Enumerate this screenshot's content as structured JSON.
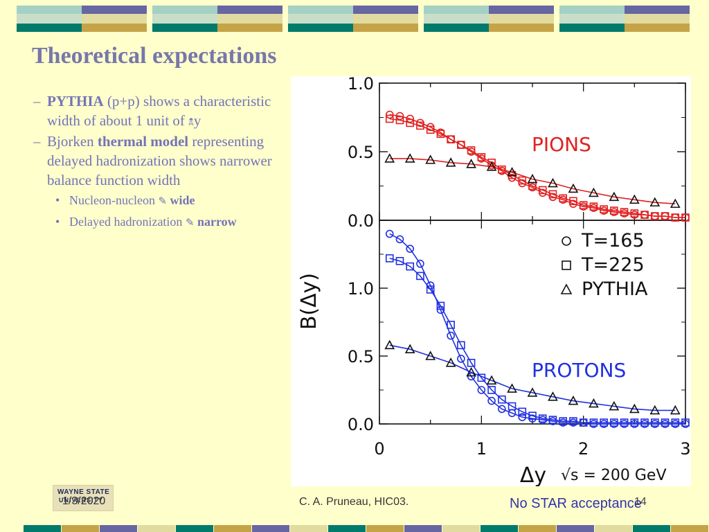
{
  "slide": {
    "title": "Theoretical expectations",
    "bullets": [
      {
        "dash": "–",
        "bold": "PYTHIA",
        "text": " (p+p) shows a characteristic width of about 1 unit of ",
        "glyph": "🕱",
        "tail": "y"
      },
      {
        "dash": "–",
        "pre": "Bjorken ",
        "bold": "thermal model",
        "text": " representing delayed hadronization shows narrower balance function width"
      }
    ],
    "subbullets": [
      {
        "text": "Nucleon-nucleon ",
        "glyph": "✎",
        "bold": "wide"
      },
      {
        "text": "Delayed hadronization ",
        "glyph": "✎",
        "bold": "narrow"
      }
    ],
    "footer": {
      "date": "1/3/2020",
      "author": "C. A. Pruneau, HIC03.",
      "page": "14",
      "note": "No STAR acceptance",
      "logo_line1": "WAYNE STATE",
      "logo_line2": "UNIVERSITY"
    }
  },
  "chart_data": [
    {
      "type": "line",
      "panel": "top",
      "label": "PIONS",
      "ylabel": "B(Δy)",
      "xlabel": "Δy",
      "energy_label": "√s = 200 GeV",
      "xlim": [
        0,
        3
      ],
      "ylim": [
        0,
        1.0
      ],
      "x_ticks": [
        "0",
        "1",
        "2",
        "3"
      ],
      "y_ticks": [
        "0.0",
        "0.5",
        "1.0"
      ],
      "color": "#e02020",
      "series": [
        {
          "name": "T=165",
          "marker": "circle",
          "x": [
            0.1,
            0.2,
            0.3,
            0.4,
            0.5,
            0.6,
            0.7,
            0.8,
            0.9,
            1.0,
            1.1,
            1.2,
            1.3,
            1.4,
            1.5,
            1.6,
            1.7,
            1.8,
            1.9,
            2.0,
            2.1,
            2.2,
            2.3,
            2.4,
            2.5,
            2.6,
            2.7,
            2.8,
            2.9,
            3.0
          ],
          "y": [
            0.77,
            0.76,
            0.74,
            0.71,
            0.68,
            0.64,
            0.59,
            0.55,
            0.5,
            0.45,
            0.4,
            0.36,
            0.31,
            0.27,
            0.24,
            0.2,
            0.17,
            0.15,
            0.12,
            0.1,
            0.09,
            0.07,
            0.06,
            0.05,
            0.04,
            0.04,
            0.03,
            0.03,
            0.02,
            0.02
          ]
        },
        {
          "name": "T=225",
          "marker": "square",
          "x": [
            0.1,
            0.2,
            0.3,
            0.4,
            0.5,
            0.6,
            0.7,
            0.8,
            0.9,
            1.0,
            1.1,
            1.2,
            1.3,
            1.4,
            1.5,
            1.6,
            1.7,
            1.8,
            1.9,
            2.0,
            2.1,
            2.2,
            2.3,
            2.4,
            2.5,
            2.6,
            2.7,
            2.8,
            2.9,
            3.0
          ],
          "y": [
            0.74,
            0.73,
            0.71,
            0.69,
            0.66,
            0.63,
            0.59,
            0.55,
            0.51,
            0.46,
            0.42,
            0.37,
            0.33,
            0.29,
            0.25,
            0.22,
            0.19,
            0.16,
            0.14,
            0.11,
            0.1,
            0.08,
            0.07,
            0.06,
            0.05,
            0.04,
            0.03,
            0.03,
            0.02,
            0.02
          ]
        },
        {
          "name": "PYTHIA",
          "marker": "triangle",
          "x": [
            0.1,
            0.3,
            0.5,
            0.7,
            0.9,
            1.1,
            1.3,
            1.5,
            1.7,
            1.9,
            2.1,
            2.3,
            2.5,
            2.7,
            2.9
          ],
          "y": [
            0.45,
            0.45,
            0.44,
            0.42,
            0.41,
            0.39,
            0.35,
            0.3,
            0.27,
            0.23,
            0.2,
            0.17,
            0.15,
            0.13,
            0.12
          ]
        }
      ]
    },
    {
      "type": "line",
      "panel": "bottom",
      "label": "PROTONS",
      "xlim": [
        0,
        3
      ],
      "ylim": [
        0,
        1.5
      ],
      "y_ticks": [
        "0.0",
        "0.5",
        "1.0"
      ],
      "color": "#2030e0",
      "legend": [
        {
          "marker": "circle",
          "label": "T=165"
        },
        {
          "marker": "square",
          "label": "T=225"
        },
        {
          "marker": "triangle",
          "label": "PYTHIA"
        }
      ],
      "series": [
        {
          "name": "T=165",
          "marker": "circle",
          "x": [
            0.1,
            0.2,
            0.3,
            0.4,
            0.5,
            0.6,
            0.7,
            0.8,
            0.9,
            1.0,
            1.1,
            1.2,
            1.3,
            1.4,
            1.5,
            1.6,
            1.7,
            1.8,
            1.9,
            2.0,
            2.1,
            2.2,
            2.3,
            2.4,
            2.5,
            2.6,
            2.7,
            2.8,
            2.9,
            3.0
          ],
          "y": [
            1.4,
            1.36,
            1.29,
            1.18,
            1.02,
            0.84,
            0.65,
            0.48,
            0.35,
            0.25,
            0.17,
            0.11,
            0.08,
            0.05,
            0.04,
            0.03,
            0.02,
            0.01,
            0.01,
            0.01,
            0.0,
            0.0,
            0.0,
            0.0,
            0.0,
            0.0,
            0.0,
            0.0,
            0.0,
            0.0
          ]
        },
        {
          "name": "T=225",
          "marker": "square",
          "x": [
            0.1,
            0.2,
            0.3,
            0.4,
            0.5,
            0.6,
            0.7,
            0.8,
            0.9,
            1.0,
            1.1,
            1.2,
            1.3,
            1.4,
            1.5,
            1.6,
            1.7,
            1.8,
            1.9,
            2.0,
            2.1,
            2.2,
            2.3,
            2.4,
            2.5,
            2.6,
            2.7,
            2.8,
            2.9,
            3.0
          ],
          "y": [
            1.22,
            1.2,
            1.16,
            1.09,
            0.99,
            0.87,
            0.73,
            0.58,
            0.45,
            0.34,
            0.25,
            0.18,
            0.13,
            0.09,
            0.06,
            0.04,
            0.03,
            0.02,
            0.02,
            0.01,
            0.01,
            0.01,
            0.01,
            0.01,
            0.01,
            0.01,
            0.01,
            0.01,
            0.01,
            0.01
          ]
        },
        {
          "name": "PYTHIA",
          "marker": "triangle",
          "x": [
            0.1,
            0.3,
            0.5,
            0.7,
            0.9,
            1.1,
            1.3,
            1.5,
            1.7,
            1.9,
            2.1,
            2.3,
            2.5,
            2.7,
            2.9
          ],
          "y": [
            0.58,
            0.55,
            0.5,
            0.45,
            0.38,
            0.32,
            0.26,
            0.23,
            0.2,
            0.17,
            0.15,
            0.13,
            0.11,
            0.1,
            0.1
          ]
        }
      ]
    }
  ]
}
